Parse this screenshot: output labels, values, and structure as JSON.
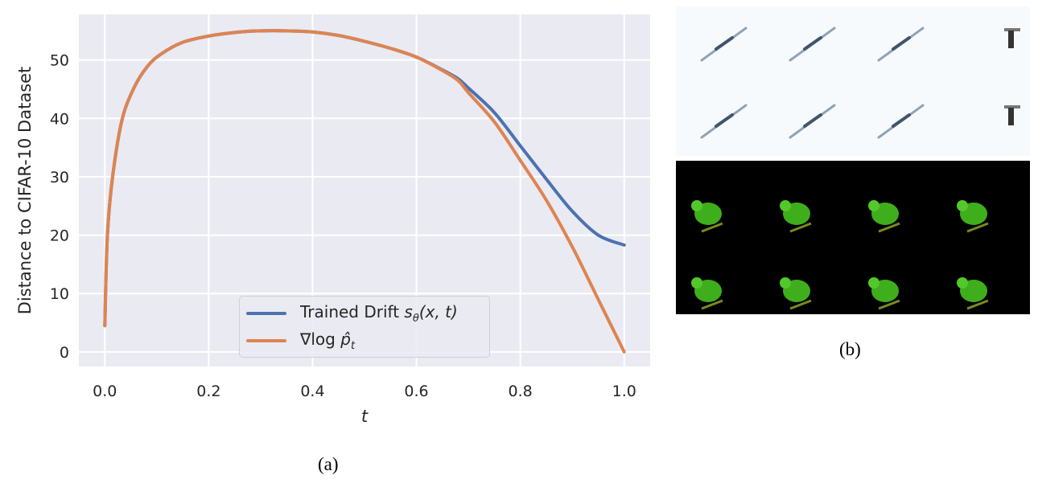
{
  "chart_data": {
    "type": "line",
    "xlabel": "t",
    "ylabel": "Distance to CIFAR-10 Dataset",
    "xlim": [
      -0.05,
      1.05
    ],
    "ylim": [
      -2.5,
      57.8
    ],
    "xticks": [
      "0.0",
      "0.2",
      "0.4",
      "0.6",
      "0.8",
      "1.0"
    ],
    "yticks": [
      "0",
      "10",
      "20",
      "30",
      "40",
      "50"
    ],
    "grid": true,
    "background": "#eaeaf2",
    "legend_position": "bottom-center",
    "x": [
      0,
      0.005,
      0.015,
      0.033,
      0.056,
      0.082,
      0.108,
      0.149,
      0.2,
      0.26,
      0.3,
      0.35,
      0.4,
      0.45,
      0.5,
      0.55,
      0.6,
      0.65,
      0.68,
      0.7,
      0.75,
      0.8,
      0.85,
      0.9,
      0.95,
      1.0
    ],
    "series": [
      {
        "name": "Trained Drift sθ(x, t)",
        "legend": {
          "text": "Trained Drift ",
          "math": "s",
          "sub": "θ",
          "tail": "(x, t)"
        },
        "color": "#4c72b0",
        "values": [
          4.5,
          20,
          30,
          39.7,
          45.2,
          48.9,
          51.0,
          53.0,
          54.1,
          54.8,
          55.0,
          55.0,
          54.8,
          54.2,
          53.2,
          52.0,
          50.5,
          48.3,
          46.8,
          45.2,
          41.0,
          35.3,
          29.6,
          24.1,
          20.0,
          18.3
        ]
      },
      {
        "name": "∇log p̂t",
        "legend": {
          "text": "∇log ",
          "math": "p̂",
          "sub": "t",
          "tail": ""
        },
        "color": "#dd8452",
        "values": [
          4.5,
          20,
          30,
          39.7,
          45.2,
          48.9,
          51.0,
          53.0,
          54.1,
          54.8,
          55.0,
          55.0,
          54.8,
          54.2,
          53.2,
          52.0,
          50.5,
          48.2,
          46.5,
          44.4,
          39.4,
          32.8,
          26.0,
          18.0,
          9.0,
          0.0
        ]
      }
    ]
  },
  "captions": {
    "a": "(a)",
    "b": "(b)"
  }
}
